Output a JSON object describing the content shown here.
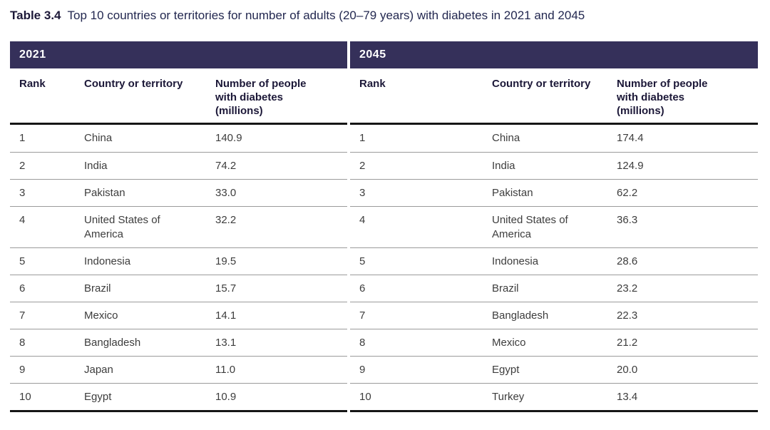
{
  "title": {
    "label": "Table 3.4",
    "text": "Top 10 countries or territories for number of adults (20–79 years) with diabetes in 2021 and 2045"
  },
  "columns": {
    "rank": "Rank",
    "country": "Country or territory",
    "number": "Number of people with diabetes (millions)"
  },
  "colors": {
    "year_band": "#35305a",
    "header_text": "#1c1838",
    "body_text": "#3d3d3d",
    "thin_rule": "#9b9b9b",
    "thick_rule": "#161616",
    "background": "#ffffff"
  },
  "tables": [
    {
      "year": "2021",
      "rows": [
        {
          "rank": "1",
          "country": "China",
          "value": "140.9"
        },
        {
          "rank": "2",
          "country": "India",
          "value": "74.2"
        },
        {
          "rank": "3",
          "country": "Pakistan",
          "value": "33.0"
        },
        {
          "rank": "4",
          "country": "United States of America",
          "value": "32.2"
        },
        {
          "rank": "5",
          "country": "Indonesia",
          "value": "19.5"
        },
        {
          "rank": "6",
          "country": "Brazil",
          "value": "15.7"
        },
        {
          "rank": "7",
          "country": "Mexico",
          "value": "14.1"
        },
        {
          "rank": "8",
          "country": "Bangladesh",
          "value": "13.1"
        },
        {
          "rank": "9",
          "country": "Japan",
          "value": "11.0"
        },
        {
          "rank": "10",
          "country": "Egypt",
          "value": "10.9"
        }
      ]
    },
    {
      "year": "2045",
      "rows": [
        {
          "rank": "1",
          "country": "China",
          "value": "174.4"
        },
        {
          "rank": "2",
          "country": "India",
          "value": "124.9"
        },
        {
          "rank": "3",
          "country": "Pakistan",
          "value": "62.2"
        },
        {
          "rank": "4",
          "country": "United States of America",
          "value": "36.3"
        },
        {
          "rank": "5",
          "country": "Indonesia",
          "value": "28.6"
        },
        {
          "rank": "6",
          "country": "Brazil",
          "value": "23.2"
        },
        {
          "rank": "7",
          "country": "Bangladesh",
          "value": "22.3"
        },
        {
          "rank": "8",
          "country": "Mexico",
          "value": "21.2"
        },
        {
          "rank": "9",
          "country": "Egypt",
          "value": "20.0"
        },
        {
          "rank": "10",
          "country": "Turkey",
          "value": "13.4"
        }
      ]
    }
  ]
}
